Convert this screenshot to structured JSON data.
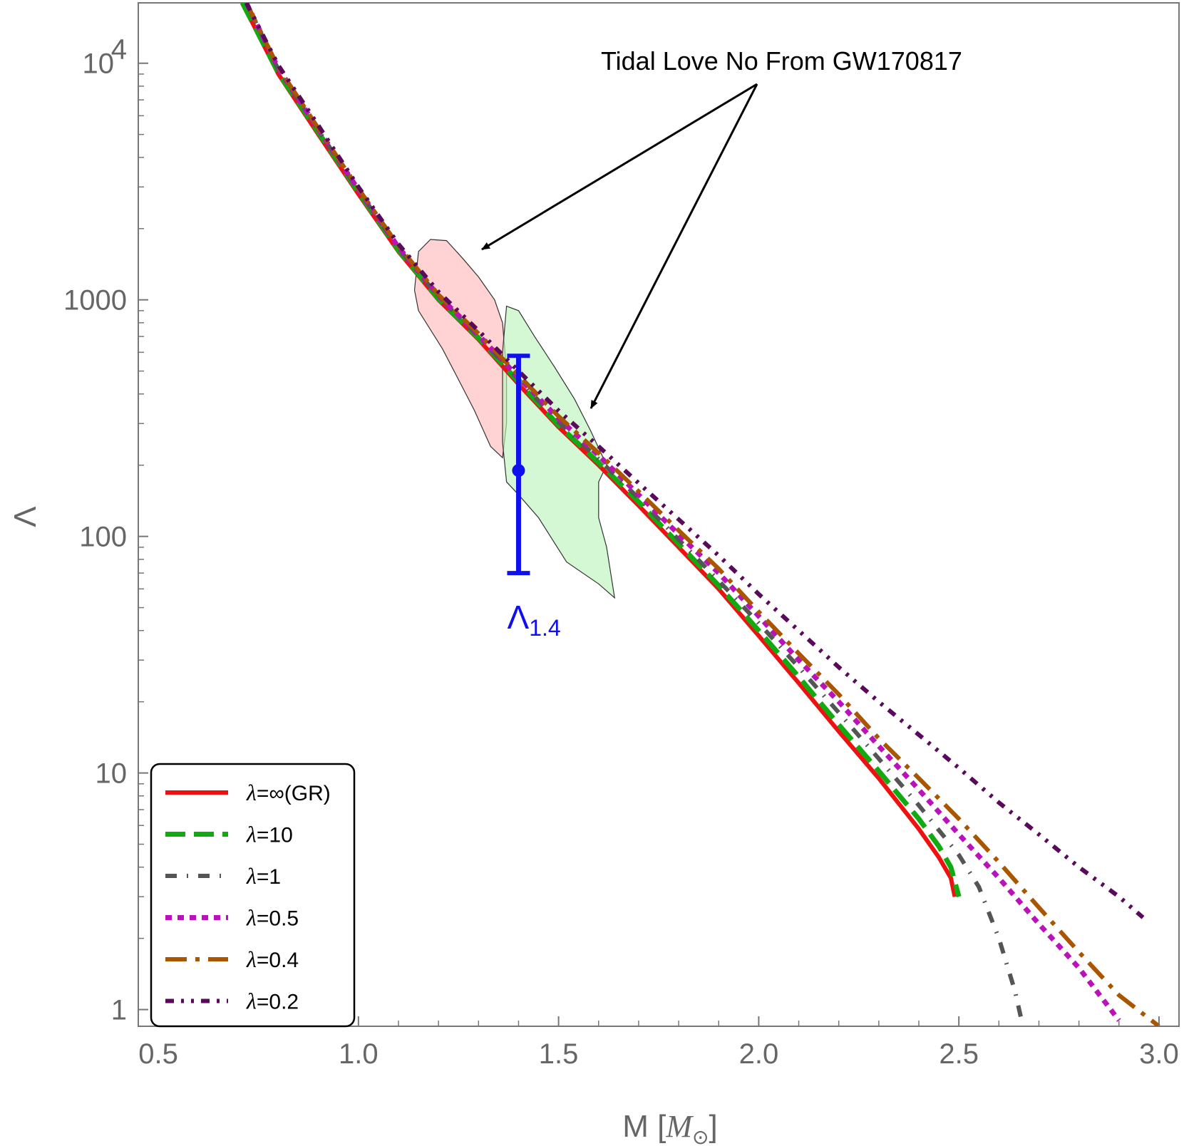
{
  "chart_data": {
    "type": "line",
    "title": "",
    "xlabel": "M [M⊙]",
    "xlabel_main": "M [",
    "xlabel_sym": "M",
    "xlabel_sub": "⊙",
    "xlabel_end": "]",
    "ylabel": "Λ",
    "xlim": [
      0.45,
      3.05
    ],
    "ylim": [
      0.85,
      18000
    ],
    "yscale": "log",
    "grid": false,
    "x_ticks": [
      {
        "value": 0.5,
        "label": "0.5"
      },
      {
        "value": 1.0,
        "label": "1.0"
      },
      {
        "value": 1.5,
        "label": "1.5"
      },
      {
        "value": 2.0,
        "label": "2.0"
      },
      {
        "value": 2.5,
        "label": "2.5"
      },
      {
        "value": 3.0,
        "label": "3.0"
      }
    ],
    "y_ticks": [
      {
        "value": 1,
        "label": "1"
      },
      {
        "value": 10,
        "label": "10"
      },
      {
        "value": 100,
        "label": "100"
      },
      {
        "value": 1000,
        "label": "1000"
      },
      {
        "value": 10000,
        "label": "10",
        "exponent": "4"
      }
    ],
    "legend_position": "bottom-left",
    "series": [
      {
        "name": "λ=∞(GR)",
        "legend_prefix": "λ",
        "legend_suffix": "=∞(GR)",
        "color": "#ee1111",
        "style": "solid",
        "points": [
          [
            0.71,
            18000
          ],
          [
            0.8,
            9000
          ],
          [
            0.9,
            5000
          ],
          [
            1.0,
            2800
          ],
          [
            1.1,
            1600
          ],
          [
            1.2,
            1000
          ],
          [
            1.3,
            680
          ],
          [
            1.4,
            440
          ],
          [
            1.5,
            290
          ],
          [
            1.6,
            200
          ],
          [
            1.7,
            135
          ],
          [
            1.8,
            90
          ],
          [
            1.9,
            60
          ],
          [
            2.0,
            38
          ],
          [
            2.1,
            24
          ],
          [
            2.2,
            15
          ],
          [
            2.3,
            9.5
          ],
          [
            2.4,
            5.8
          ],
          [
            2.45,
            4.4
          ],
          [
            2.48,
            3.6
          ],
          [
            2.49,
            3.0
          ]
        ]
      },
      {
        "name": "λ=10",
        "legend_prefix": "λ",
        "legend_suffix": "=10",
        "color": "#11aa11",
        "style": "dash",
        "points": [
          [
            0.71,
            18000
          ],
          [
            0.8,
            9100
          ],
          [
            0.9,
            5100
          ],
          [
            1.0,
            2850
          ],
          [
            1.1,
            1620
          ],
          [
            1.2,
            1010
          ],
          [
            1.3,
            690
          ],
          [
            1.4,
            450
          ],
          [
            1.5,
            295
          ],
          [
            1.6,
            205
          ],
          [
            1.7,
            140
          ],
          [
            1.8,
            93
          ],
          [
            1.9,
            62
          ],
          [
            2.0,
            40
          ],
          [
            2.1,
            25.5
          ],
          [
            2.2,
            16
          ],
          [
            2.3,
            10.2
          ],
          [
            2.4,
            6.4
          ],
          [
            2.45,
            4.9
          ],
          [
            2.48,
            4.0
          ],
          [
            2.5,
            3.0
          ]
        ]
      },
      {
        "name": "λ=1",
        "legend_prefix": "λ",
        "legend_suffix": "=1",
        "color": "#555555",
        "style": "dashdot",
        "points": [
          [
            0.72,
            18000
          ],
          [
            0.8,
            9400
          ],
          [
            0.9,
            5200
          ],
          [
            1.0,
            2900
          ],
          [
            1.1,
            1650
          ],
          [
            1.2,
            1030
          ],
          [
            1.3,
            700
          ],
          [
            1.4,
            460
          ],
          [
            1.5,
            305
          ],
          [
            1.6,
            212
          ],
          [
            1.7,
            145
          ],
          [
            1.8,
            97
          ],
          [
            1.9,
            65
          ],
          [
            2.0,
            43
          ],
          [
            2.1,
            28
          ],
          [
            2.2,
            18
          ],
          [
            2.3,
            11.5
          ],
          [
            2.4,
            7.3
          ],
          [
            2.5,
            4.5
          ],
          [
            2.55,
            3.3
          ],
          [
            2.6,
            2.0
          ],
          [
            2.64,
            1.2
          ],
          [
            2.66,
            0.85
          ]
        ]
      },
      {
        "name": "λ=0.5",
        "legend_prefix": "λ",
        "legend_suffix": "=0.5",
        "color": "#bb11bb",
        "style": "dot",
        "points": [
          [
            0.72,
            18000
          ],
          [
            0.8,
            9500
          ],
          [
            0.9,
            5250
          ],
          [
            1.0,
            2920
          ],
          [
            1.1,
            1670
          ],
          [
            1.2,
            1040
          ],
          [
            1.3,
            710
          ],
          [
            1.4,
            470
          ],
          [
            1.5,
            315
          ],
          [
            1.6,
            220
          ],
          [
            1.7,
            150
          ],
          [
            1.8,
            102
          ],
          [
            1.9,
            70
          ],
          [
            2.0,
            46
          ],
          [
            2.1,
            30
          ],
          [
            2.2,
            20
          ],
          [
            2.3,
            13
          ],
          [
            2.4,
            8.5
          ],
          [
            2.5,
            5.5
          ],
          [
            2.6,
            3.6
          ],
          [
            2.7,
            2.3
          ],
          [
            2.8,
            1.5
          ],
          [
            2.9,
            0.9
          ]
        ]
      },
      {
        "name": "λ=0.4",
        "legend_prefix": "λ",
        "legend_suffix": "=0.4",
        "color": "#aa5500",
        "style": "longdashdot",
        "points": [
          [
            0.72,
            18000
          ],
          [
            0.8,
            9600
          ],
          [
            0.9,
            5300
          ],
          [
            1.0,
            2950
          ],
          [
            1.1,
            1690
          ],
          [
            1.2,
            1050
          ],
          [
            1.3,
            720
          ],
          [
            1.4,
            480
          ],
          [
            1.5,
            322
          ],
          [
            1.6,
            225
          ],
          [
            1.7,
            155
          ],
          [
            1.8,
            106
          ],
          [
            1.9,
            73
          ],
          [
            2.0,
            48
          ],
          [
            2.1,
            32
          ],
          [
            2.2,
            21.5
          ],
          [
            2.3,
            14
          ],
          [
            2.4,
            9.5
          ],
          [
            2.5,
            6.4
          ],
          [
            2.6,
            4.2
          ],
          [
            2.7,
            2.7
          ],
          [
            2.8,
            1.75
          ],
          [
            2.9,
            1.15
          ],
          [
            3.0,
            0.85
          ]
        ]
      },
      {
        "name": "λ=0.2",
        "legend_prefix": "λ",
        "legend_suffix": "=0.2",
        "color": "#5a0a5a",
        "style": "dashdotdot",
        "points": [
          [
            0.72,
            18000
          ],
          [
            0.8,
            9800
          ],
          [
            0.9,
            5450
          ],
          [
            1.0,
            3000
          ],
          [
            1.1,
            1720
          ],
          [
            1.2,
            1080
          ],
          [
            1.3,
            740
          ],
          [
            1.4,
            500
          ],
          [
            1.5,
            340
          ],
          [
            1.6,
            240
          ],
          [
            1.7,
            168
          ],
          [
            1.8,
            118
          ],
          [
            1.9,
            83
          ],
          [
            2.0,
            57
          ],
          [
            2.1,
            40
          ],
          [
            2.2,
            28
          ],
          [
            2.3,
            20
          ],
          [
            2.4,
            14.5
          ],
          [
            2.5,
            10.5
          ],
          [
            2.6,
            7.5
          ],
          [
            2.7,
            5.5
          ],
          [
            2.8,
            4.0
          ],
          [
            2.9,
            3.0
          ],
          [
            2.96,
            2.45
          ]
        ]
      }
    ],
    "regions": [
      {
        "name": "GW170817 posterior (higher Λ)",
        "color": "#ffbbbb",
        "points": [
          [
            1.15,
            1600
          ],
          [
            1.18,
            1800
          ],
          [
            1.22,
            1780
          ],
          [
            1.26,
            1500
          ],
          [
            1.3,
            1250
          ],
          [
            1.34,
            1000
          ],
          [
            1.36,
            800
          ],
          [
            1.37,
            500
          ],
          [
            1.37,
            300
          ],
          [
            1.36,
            215
          ],
          [
            1.33,
            240
          ],
          [
            1.29,
            340
          ],
          [
            1.25,
            460
          ],
          [
            1.21,
            620
          ],
          [
            1.15,
            900
          ],
          [
            1.14,
            1100
          ]
        ]
      },
      {
        "name": "GW170817 posterior (lower Λ)",
        "color": "#bbf5bb",
        "points": [
          [
            1.37,
            940
          ],
          [
            1.4,
            900
          ],
          [
            1.44,
            700
          ],
          [
            1.49,
            520
          ],
          [
            1.54,
            380
          ],
          [
            1.58,
            280
          ],
          [
            1.62,
            200
          ],
          [
            1.6,
            170
          ],
          [
            1.6,
            120
          ],
          [
            1.62,
            90
          ],
          [
            1.64,
            55
          ],
          [
            1.6,
            63
          ],
          [
            1.52,
            78
          ],
          [
            1.45,
            120
          ],
          [
            1.4,
            150
          ],
          [
            1.37,
            170
          ],
          [
            1.36,
            250
          ],
          [
            1.36,
            600
          ]
        ]
      }
    ],
    "errorbar": {
      "label_main": "Λ",
      "label_sub": "1.4",
      "x": 1.4,
      "center": 190,
      "low": 70,
      "high": 580,
      "color": "#1010ee"
    },
    "annotations": [
      {
        "text": "Tidal Love No From GW170817"
      }
    ]
  }
}
